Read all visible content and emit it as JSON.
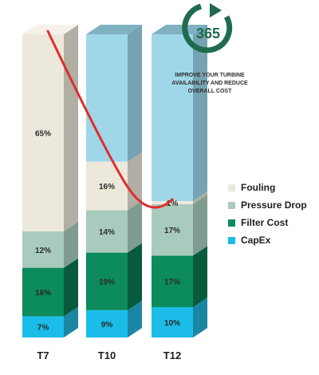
{
  "chart_data": {
    "type": "bar",
    "stacked": true,
    "categories": [
      "T7",
      "T10",
      "T12"
    ],
    "series": [
      {
        "name": "CapEx",
        "values": [
          7,
          9,
          10
        ],
        "color": "#1bbde8",
        "side_color": "#1a86a3",
        "top_color": "#48cdef"
      },
      {
        "name": "Filter Cost",
        "values": [
          16,
          19,
          17
        ],
        "color": "#0c8b5c",
        "side_color": "#075a3b",
        "top_color": "#2aa676"
      },
      {
        "name": "Pressure Drop",
        "values": [
          12,
          14,
          17
        ],
        "color": "#a9cbbd",
        "side_color": "#7f9c91",
        "top_color": "#c4ddd2"
      },
      {
        "name": "Fouling",
        "values": [
          65,
          16,
          1
        ],
        "color": "#ede8dc",
        "side_color": "#b1aea4",
        "top_color": "#f5f2ea"
      },
      {
        "name": "",
        "values": [
          0,
          42,
          55
        ],
        "color": "#9fd7e9",
        "side_color": "#76a3b2",
        "top_color": "#7fb1c0"
      }
    ],
    "value_labels": [
      [
        "7%",
        "9%",
        "10%"
      ],
      [
        "16%",
        "19%",
        "17%"
      ],
      [
        "12%",
        "14%",
        "17%"
      ],
      [
        "65%",
        "16%",
        "1%"
      ]
    ],
    "legend": [
      "Fouling",
      "Pressure Drop",
      "Filter Cost",
      "CapEx"
    ],
    "legend_position": "right",
    "trend_line_color": "#e02d2d",
    "grid": false
  },
  "logo": {
    "number": "365",
    "tagline": [
      "IMPROVE YOUR TURBINE",
      "AVAILABILITY AND REDUCE",
      "OVERALL COST"
    ],
    "color": "#1f6b4e"
  }
}
